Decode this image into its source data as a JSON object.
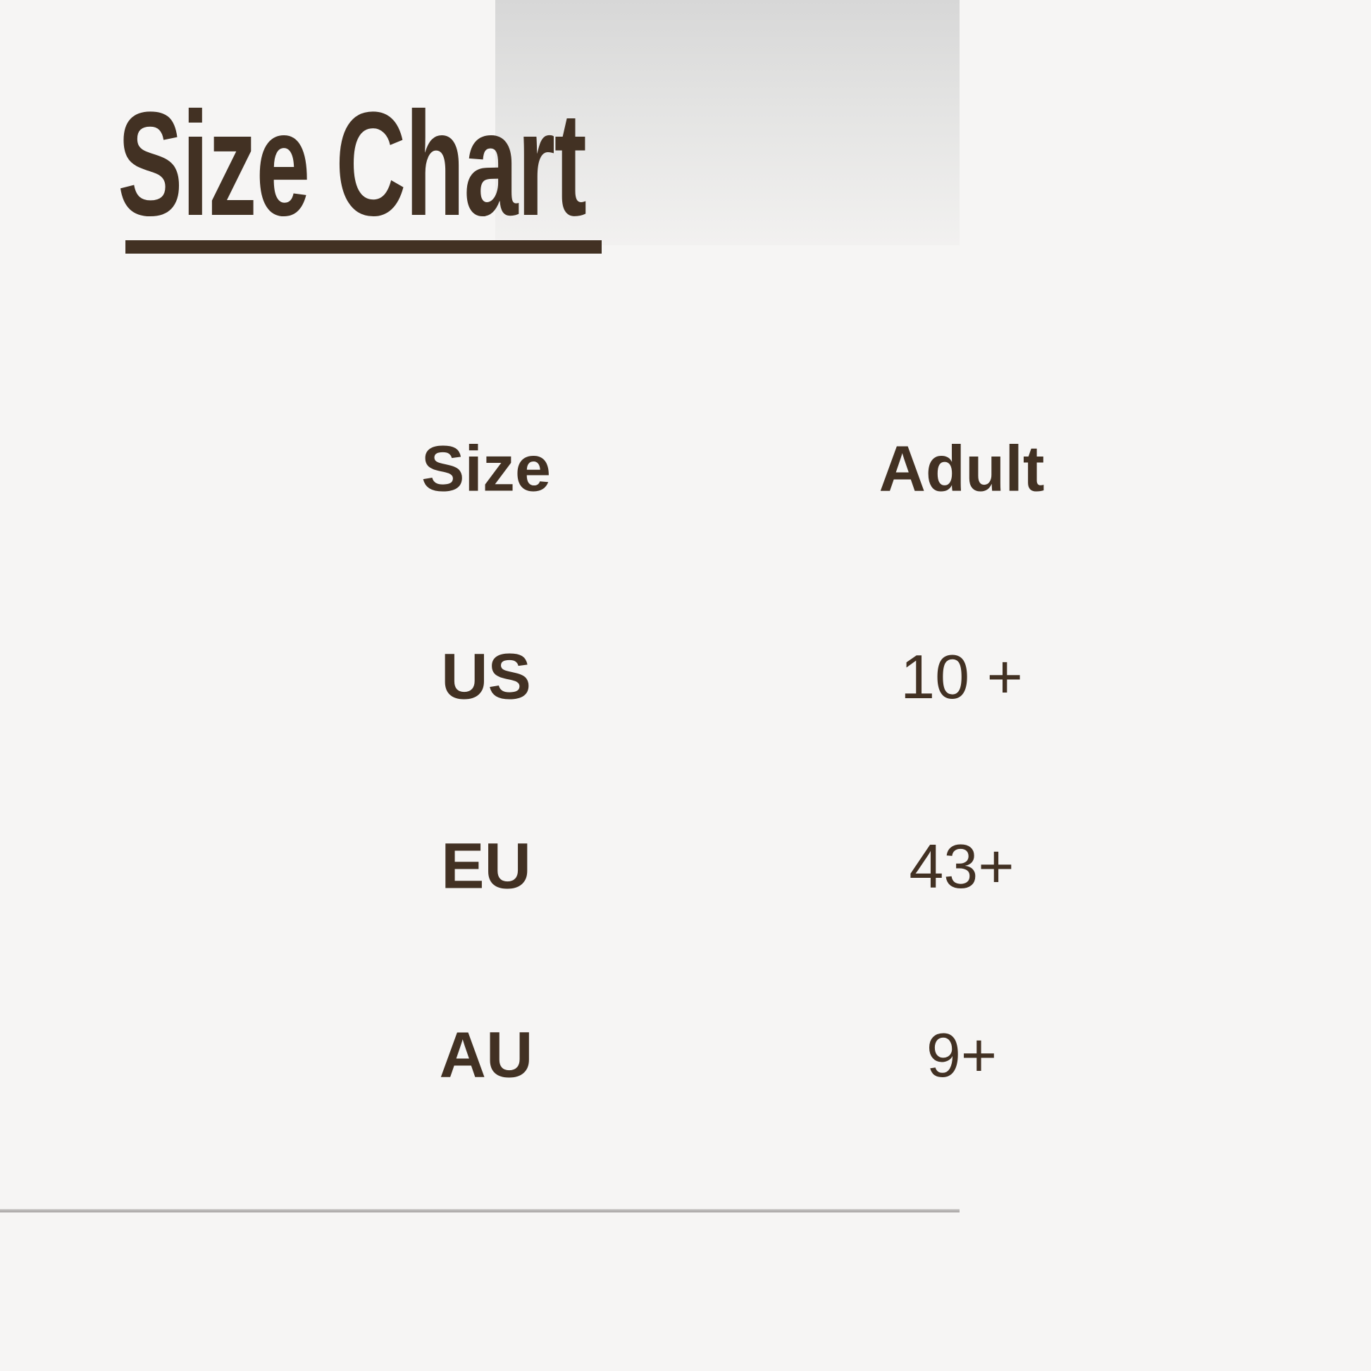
{
  "page": {
    "title": "Size Chart",
    "background_color": "#f6f5f4",
    "text_color": "#423123",
    "gradient_top_color": "#d7d7d7",
    "divider_color": "#aeabaa"
  },
  "chart_data": {
    "type": "table",
    "title": "Size Chart",
    "columns": [
      "Size",
      "Adult"
    ],
    "rows": [
      {
        "size": "US",
        "adult": "10 +"
      },
      {
        "size": "EU",
        "adult": "43+"
      },
      {
        "size": "AU",
        "adult": "9+"
      }
    ],
    "layout_hints": {
      "columns_centered": true,
      "header_row_bold": true,
      "size_column_bold": true,
      "adult_column_regular_weight": true,
      "title_underlined": true
    }
  }
}
